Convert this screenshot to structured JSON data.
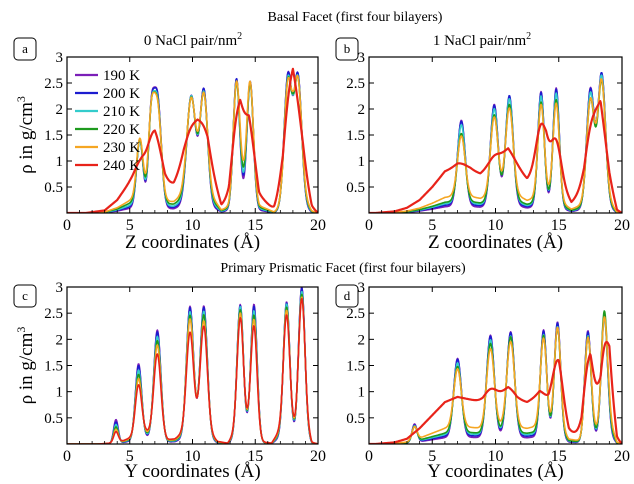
{
  "figure": {
    "section_top": "Basal Facet (first four bilayers)",
    "section_bottom": "Primary Prismatic Facet (first four bilayers)"
  },
  "legend": {
    "entries": [
      "190 K",
      "200 K",
      "210 K",
      "220 K",
      "230 K",
      "240 K"
    ],
    "colors": [
      "#7b1fb8",
      "#1c1ccf",
      "#33cccc",
      "#1e9a1e",
      "#f5a623",
      "#e8231a"
    ]
  },
  "chart_data": [
    {
      "id": "a",
      "type": "line",
      "panel_label": "a",
      "title": "0 NaCl pair/nm",
      "title_sup": "2",
      "xlabel": "Z coordinates (Å)",
      "ylabel": "ρ in g/cm",
      "ylabel_sup": "3",
      "xlim": [
        0,
        20
      ],
      "ylim": [
        0,
        3
      ],
      "xticks": [
        0,
        5,
        10,
        15,
        20
      ],
      "yticks": [
        0.5,
        1,
        1.5,
        2,
        2.5,
        3
      ],
      "profile": {
        "base": [
          [
            1.5,
            0
          ],
          [
            3,
            0.05
          ],
          [
            4,
            0.25
          ],
          [
            5,
            0.6
          ],
          [
            5.5,
            0.75
          ],
          [
            6,
            0.9
          ],
          [
            7,
            1.0
          ],
          [
            7.8,
            0.55
          ],
          [
            8.5,
            0.55
          ],
          [
            9.3,
            0.9
          ],
          [
            10.4,
            1.15
          ],
          [
            11.2,
            1.05
          ],
          [
            12.3,
            0.15
          ],
          [
            12.9,
            0.3
          ],
          [
            13.8,
            1.65
          ],
          [
            14.5,
            1.6
          ],
          [
            15.3,
            0.35
          ],
          [
            16.5,
            0.05
          ],
          [
            17.2,
            0.3
          ],
          [
            18.0,
            1.5
          ],
          [
            18.8,
            0.8
          ],
          [
            19.5,
            0.1
          ],
          [
            20,
            0
          ]
        ],
        "peaks": [
          [
            5.8,
            0.25
          ],
          [
            6.7,
            0.22
          ],
          [
            7.2,
            0.3
          ],
          [
            9.9,
            0.35
          ],
          [
            10.9,
            0.3
          ],
          [
            13.5,
            0.25
          ],
          [
            14.6,
            0.25
          ],
          [
            17.6,
            0.3
          ],
          [
            18.4,
            0.3
          ]
        ]
      },
      "series": [
        {
          "name": "190 K",
          "peaks": [
            1.3,
            1.5,
            2.1,
            2.1,
            2.2,
            2.4,
            2.3,
            2.5,
            2.45
          ],
          "fill": 0.0
        },
        {
          "name": "200 K",
          "peaks": [
            1.25,
            1.45,
            2.05,
            2.05,
            2.15,
            2.35,
            2.25,
            2.45,
            2.4
          ],
          "fill": 0.05
        },
        {
          "name": "210 K",
          "peaks": [
            1.2,
            1.4,
            1.95,
            2.0,
            2.05,
            2.25,
            2.15,
            2.35,
            2.3
          ],
          "fill": 0.1
        },
        {
          "name": "220 K",
          "peaks": [
            1.15,
            1.35,
            1.85,
            1.9,
            1.95,
            2.15,
            2.05,
            2.25,
            2.2
          ],
          "fill": 0.18
        },
        {
          "name": "230 K",
          "peaks": [
            1.1,
            1.3,
            1.75,
            1.8,
            1.85,
            2.05,
            1.95,
            2.15,
            2.1
          ],
          "fill": 0.28
        },
        {
          "name": "240 K",
          "peaks": [
            1.0,
            1.2,
            1.35,
            1.6,
            1.55,
            1.85,
            1.7,
            2.0,
            1.85
          ],
          "smooth": true
        }
      ]
    },
    {
      "id": "b",
      "type": "line",
      "panel_label": "b",
      "title": "1 NaCl pair/nm",
      "title_sup": "2",
      "xlabel": "Z coordinates (Å)",
      "ylabel": "",
      "xlim": [
        0,
        20
      ],
      "ylim": [
        0,
        3
      ],
      "xticks": [
        0,
        5,
        10,
        15,
        20
      ],
      "yticks": [
        0.5,
        1,
        1.5,
        2,
        2.5,
        3
      ],
      "profile": {
        "base": [
          [
            0.5,
            0
          ],
          [
            2,
            0.03
          ],
          [
            3,
            0.1
          ],
          [
            4,
            0.25
          ],
          [
            5,
            0.5
          ],
          [
            6,
            0.8
          ],
          [
            7,
            0.9
          ],
          [
            8,
            0.85
          ],
          [
            8.8,
            0.75
          ],
          [
            9.5,
            0.85
          ],
          [
            10.3,
            1.0
          ],
          [
            11.0,
            1.15
          ],
          [
            11.6,
            0.95
          ],
          [
            12.5,
            0.65
          ],
          [
            13.2,
            0.8
          ],
          [
            14.0,
            1.0
          ],
          [
            14.8,
            0.7
          ],
          [
            16.0,
            0.2
          ],
          [
            17.0,
            0.45
          ],
          [
            18.3,
            1.6
          ],
          [
            19.0,
            0.6
          ],
          [
            19.6,
            0.05
          ],
          [
            20,
            0
          ]
        ],
        "peaks": [
          [
            7.3,
            0.3
          ],
          [
            9.9,
            0.3
          ],
          [
            11.1,
            0.3
          ],
          [
            13.6,
            0.25
          ],
          [
            14.8,
            0.25
          ],
          [
            17.5,
            0.3
          ],
          [
            18.4,
            0.3
          ]
        ]
      },
      "series": [
        {
          "name": "190 K",
          "peaks": [
            1.65,
            1.95,
            2.05,
            2.2,
            2.3,
            2.25,
            2.45
          ],
          "fill": 0.0
        },
        {
          "name": "200 K",
          "peaks": [
            1.6,
            1.9,
            2.05,
            2.15,
            2.25,
            2.2,
            2.4
          ],
          "fill": 0.04
        },
        {
          "name": "210 K",
          "peaks": [
            1.5,
            1.8,
            1.95,
            2.05,
            2.15,
            2.1,
            2.3
          ],
          "fill": 0.08
        },
        {
          "name": "220 K",
          "peaks": [
            1.3,
            1.65,
            1.8,
            1.9,
            2.0,
            1.95,
            2.15
          ],
          "fill": 0.12
        },
        {
          "name": "230 K",
          "peaks": [
            1.15,
            1.5,
            1.6,
            1.75,
            1.85,
            1.85,
            2.0
          ],
          "fill": 0.25
        },
        {
          "name": "240 K",
          "peaks": [
            0.95,
            1.1,
            1.2,
            1.7,
            1.4,
            1.6,
            1.85
          ],
          "smooth": true
        }
      ]
    },
    {
      "id": "c",
      "type": "line",
      "panel_label": "c",
      "title": "",
      "xlabel": "Y coordinates (Å)",
      "ylabel": "ρ in g/cm",
      "ylabel_sup": "3",
      "xlim": [
        0,
        20
      ],
      "ylim": [
        0,
        3
      ],
      "xticks": [
        0,
        5,
        10,
        15,
        20
      ],
      "yticks": [
        0.5,
        1,
        1.5,
        2,
        2.5,
        3
      ],
      "profile": {
        "base": [
          [
            2.5,
            0
          ],
          [
            3.5,
            0.05
          ],
          [
            4.5,
            0.2
          ],
          [
            5.5,
            0.5
          ],
          [
            6.3,
            0.7
          ],
          [
            7.1,
            0.55
          ],
          [
            8.0,
            0.25
          ],
          [
            8.6,
            0.3
          ],
          [
            9.5,
            0.8
          ],
          [
            10.4,
            1.0
          ],
          [
            11.0,
            0.9
          ],
          [
            12.0,
            0.15
          ],
          [
            12.8,
            0.05
          ],
          [
            13.9,
            1.2
          ],
          [
            14.5,
            0.9
          ],
          [
            15.2,
            0.15
          ],
          [
            16.3,
            0.05
          ],
          [
            17.3,
            1.2
          ],
          [
            18.2,
            0.8
          ],
          [
            18.9,
            1.5
          ],
          [
            19.5,
            0.1
          ],
          [
            20,
            0
          ]
        ],
        "peaks": [
          [
            3.9,
            0.18
          ],
          [
            5.7,
            0.25
          ],
          [
            7.2,
            0.28
          ],
          [
            9.8,
            0.28
          ],
          [
            10.9,
            0.28
          ],
          [
            13.8,
            0.25
          ],
          [
            14.9,
            0.25
          ],
          [
            17.5,
            0.25
          ],
          [
            18.7,
            0.25
          ]
        ]
      },
      "series": [
        {
          "name": "190 K",
          "peaks": [
            0.45,
            1.45,
            2.1,
            2.5,
            2.5,
            2.5,
            2.6,
            2.55,
            2.8
          ],
          "fill": 0.0
        },
        {
          "name": "200 K",
          "peaks": [
            0.4,
            1.4,
            2.05,
            2.45,
            2.45,
            2.45,
            2.55,
            2.5,
            2.75
          ],
          "fill": 0.03
        },
        {
          "name": "210 K",
          "peaks": [
            0.35,
            1.3,
            1.95,
            2.35,
            2.35,
            2.4,
            2.45,
            2.45,
            2.65
          ],
          "fill": 0.06
        },
        {
          "name": "220 K",
          "peaks": [
            0.3,
            1.2,
            1.85,
            2.25,
            2.25,
            2.3,
            2.35,
            2.35,
            2.55
          ],
          "fill": 0.1
        },
        {
          "name": "230 K",
          "peaks": [
            0.25,
            1.1,
            1.75,
            2.15,
            2.1,
            2.2,
            2.25,
            2.25,
            2.45
          ],
          "fill": 0.14
        },
        {
          "name": "240 K",
          "peaks": [
            0.2,
            0.95,
            1.55,
            1.85,
            1.95,
            2.05,
            2.1,
            2.1,
            2.35
          ],
          "fill": 0.2
        }
      ]
    },
    {
      "id": "d",
      "type": "line",
      "panel_label": "d",
      "title": "",
      "xlabel": "Y coordinates (Å)",
      "ylabel": "",
      "xlim": [
        0,
        20
      ],
      "ylim": [
        0,
        3
      ],
      "xticks": [
        0,
        5,
        10,
        15,
        20
      ],
      "yticks": [
        0.5,
        1,
        1.5,
        2,
        2.5,
        3
      ],
      "profile": {
        "base": [
          [
            0.5,
            0
          ],
          [
            2,
            0.03
          ],
          [
            3,
            0.1
          ],
          [
            4,
            0.3
          ],
          [
            5,
            0.55
          ],
          [
            6,
            0.8
          ],
          [
            7,
            0.9
          ],
          [
            8,
            0.85
          ],
          [
            9,
            0.8
          ],
          [
            10,
            0.9
          ],
          [
            11,
            1.0
          ],
          [
            11.7,
            0.85
          ],
          [
            12.5,
            0.8
          ],
          [
            13.5,
            0.95
          ],
          [
            14.2,
            0.75
          ],
          [
            15,
            0.9
          ],
          [
            15.8,
            0.25
          ],
          [
            16.8,
            0.15
          ],
          [
            17.5,
            1.0
          ],
          [
            18.3,
            0.4
          ],
          [
            19.0,
            1.2
          ],
          [
            19.6,
            0.1
          ],
          [
            20,
            0
          ]
        ],
        "peaks": [
          [
            3.6,
            0.2
          ],
          [
            7.0,
            0.3
          ],
          [
            9.6,
            0.3
          ],
          [
            11.2,
            0.3
          ],
          [
            13.8,
            0.25
          ],
          [
            14.9,
            0.25
          ],
          [
            17.3,
            0.25
          ],
          [
            18.6,
            0.25
          ]
        ]
      },
      "series": [
        {
          "name": "190 K",
          "peaks": [
            0.35,
            1.5,
            1.95,
            2.0,
            2.05,
            2.2,
            2.05,
            2.35
          ],
          "fill": 0.0
        },
        {
          "name": "200 K",
          "peaks": [
            0.32,
            1.45,
            1.9,
            1.95,
            2.0,
            2.15,
            2.0,
            2.3
          ],
          "fill": 0.04
        },
        {
          "name": "210 K",
          "peaks": [
            0.3,
            1.35,
            1.8,
            1.85,
            1.9,
            2.05,
            1.9,
            2.25
          ],
          "fill": 0.08
        },
        {
          "name": "220 K",
          "peaks": [
            0.28,
            1.25,
            1.7,
            1.8,
            1.85,
            2.0,
            1.85,
            2.35
          ],
          "fill": 0.12
        },
        {
          "name": "230 K",
          "peaks": [
            0.25,
            1.1,
            1.5,
            1.6,
            1.7,
            1.9,
            1.75,
            2.15
          ],
          "fill": 0.25
        },
        {
          "name": "240 K",
          "peaks": [
            0.2,
            0.9,
            1.05,
            1.05,
            0.95,
            1.6,
            1.55,
            1.85
          ],
          "smooth": true
        }
      ]
    }
  ]
}
